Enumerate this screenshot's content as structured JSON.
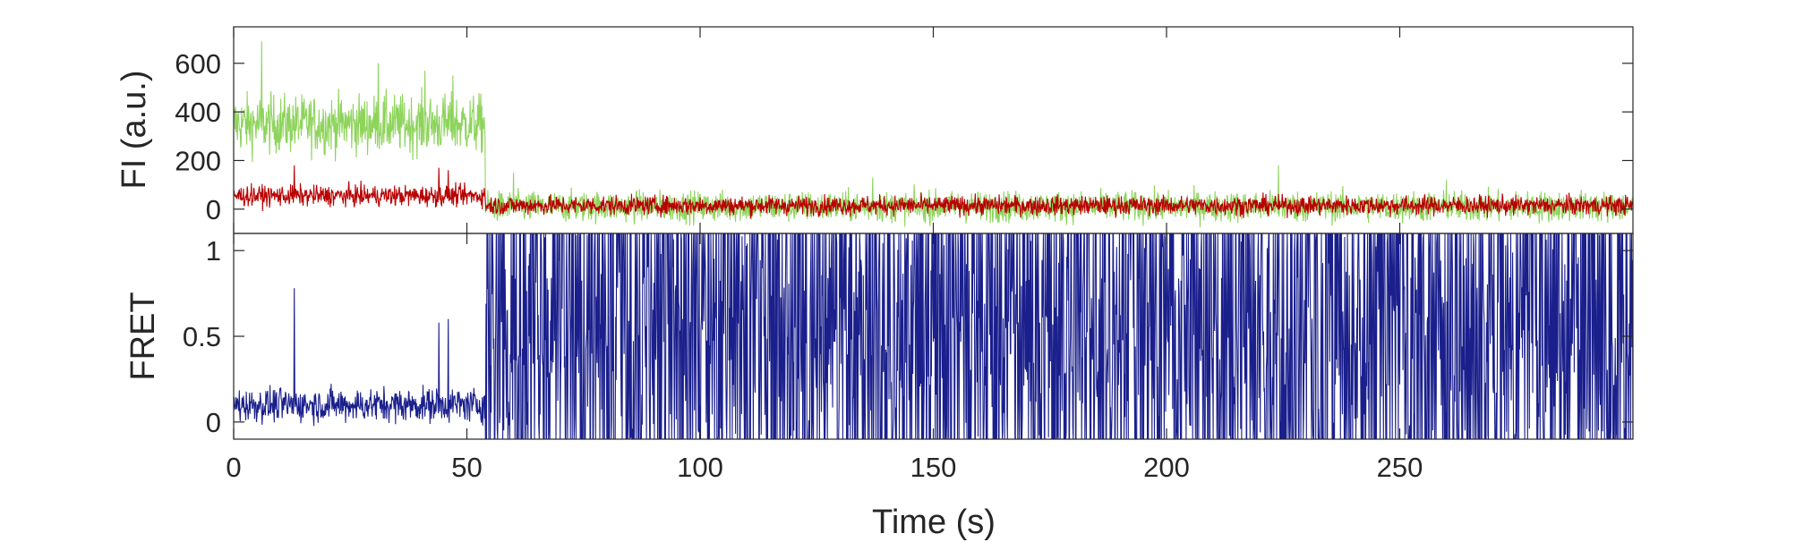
{
  "chart_data": [
    {
      "type": "line",
      "panel": "top",
      "ylabel": "FI (a.u.)",
      "xlabel": "",
      "xlim": [
        0,
        300
      ],
      "ylim": [
        -100,
        750
      ],
      "yticks": [
        0,
        200,
        400,
        600
      ],
      "yticklabels": [
        "0",
        "200",
        "400",
        "600"
      ],
      "grid": false,
      "series": [
        {
          "color": "#8ed45c",
          "description_values": "noisy trace; step from ~350 to ~0 at t=54 s",
          "segments": [
            {
              "x0": 0,
              "x1": 54,
              "mean": 350,
              "noise": 85,
              "spikes": [
                [
                  6,
                  690
                ],
                [
                  31,
                  600
                ],
                [
                  41,
                  570
                ],
                [
                  47,
                  550
                ]
              ]
            },
            {
              "x0": 54,
              "x1": 300,
              "mean": 10,
              "noise": 45,
              "spikes": [
                [
                  60,
                  150
                ],
                [
                  137,
                  130
                ],
                [
                  224,
                  180
                ],
                [
                  260,
                  120
                ]
              ]
            }
          ]
        },
        {
          "color": "#b80000",
          "description_values": "noisy trace; ~55 before t=54 s, ~15 after",
          "segments": [
            {
              "x0": 0,
              "x1": 54,
              "mean": 55,
              "noise": 30,
              "spikes": [
                [
                  13,
                  180
                ],
                [
                  44,
                  170
                ],
                [
                  46,
                  160
                ]
              ]
            },
            {
              "x0": 54,
              "x1": 300,
              "mean": 15,
              "noise": 28,
              "spikes": []
            }
          ]
        }
      ]
    },
    {
      "type": "line",
      "panel": "bottom",
      "ylabel": "FRET",
      "xlabel": "Time (s)",
      "xlim": [
        0,
        300
      ],
      "ylim": [
        -0.1,
        1.1
      ],
      "xticks": [
        0,
        50,
        100,
        150,
        200,
        250
      ],
      "xticklabels": [
        "0",
        "50",
        "100",
        "150",
        "200",
        "250"
      ],
      "yticks": [
        0,
        0.5,
        1
      ],
      "yticklabels": [
        "0",
        "0.5",
        "1"
      ],
      "grid": false,
      "series": [
        {
          "color": "#1a1f8c",
          "description_values": "FRET ~0.1 before t=54 s, saturating noise 0–1 after",
          "segments": [
            {
              "x0": 0,
              "x1": 54,
              "mean": 0.1,
              "noise": 0.07,
              "spikes": [
                [
                  13,
                  0.78
                ],
                [
                  44,
                  0.58
                ],
                [
                  46,
                  0.6
                ]
              ]
            },
            {
              "x0": 54,
              "x1": 300,
              "mean": 0.5,
              "noise": 0.6,
              "spikes": []
            }
          ]
        }
      ]
    }
  ]
}
